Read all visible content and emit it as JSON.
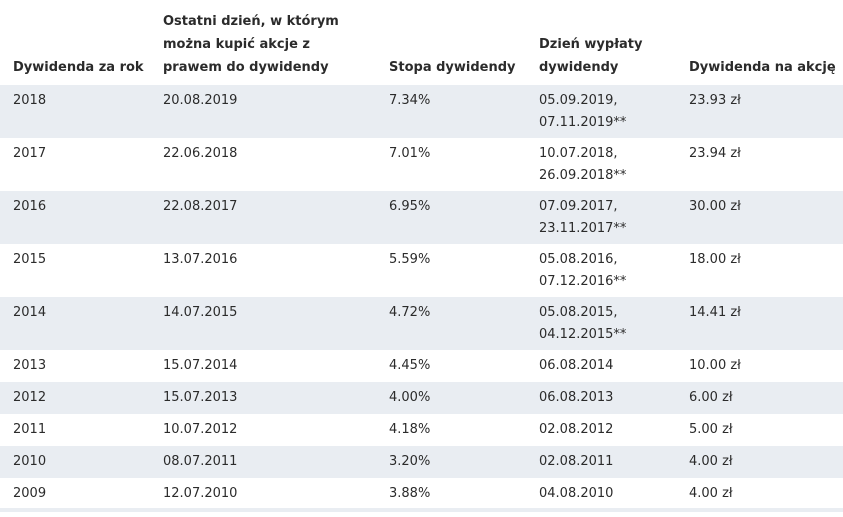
{
  "table": {
    "header": [
      "Dywidenda za rok",
      "Ostatni dzień, w którym można kupić akcje z prawem do dywidendy",
      "Stopa dywidendy",
      "Dzień wypłaty dywidendy",
      "Dywidenda na akcję"
    ],
    "rows": [
      [
        "2018",
        "20.08.2019",
        "7.34%",
        [
          "05.09.2019,",
          "07.11.2019**"
        ],
        "23.93 zł"
      ],
      [
        "2017",
        "22.06.2018",
        "7.01%",
        [
          "10.07.2018,",
          "26.09.2018**"
        ],
        "23.94 zł"
      ],
      [
        "2016",
        "22.08.2017",
        "6.95%",
        [
          "07.09.2017,",
          "23.11.2017**"
        ],
        "30.00 zł"
      ],
      [
        "2015",
        "13.07.2016",
        "5.59%",
        [
          "05.08.2016,",
          "07.12.2016**"
        ],
        "18.00 zł"
      ],
      [
        "2014",
        "14.07.2015",
        "4.72%",
        [
          "05.08.2015,",
          "04.12.2015**"
        ],
        "14.41 zł"
      ],
      [
        "2013",
        "15.07.2014",
        "4.45%",
        "06.08.2014",
        "10.00 zł"
      ],
      [
        "2012",
        "15.07.2013",
        "4.00%",
        "06.08.2013",
        "6.00 zł"
      ],
      [
        "2011",
        "10.07.2012",
        "4.18%",
        "02.08.2012",
        "5.00 zł"
      ],
      [
        "2010",
        "08.07.2011",
        "3.20%",
        "02.08.2011",
        "4.00 zł"
      ],
      [
        "2009",
        "12.07.2010",
        "3.88%",
        "04.08.2010",
        "4.00 zł"
      ]
    ]
  }
}
